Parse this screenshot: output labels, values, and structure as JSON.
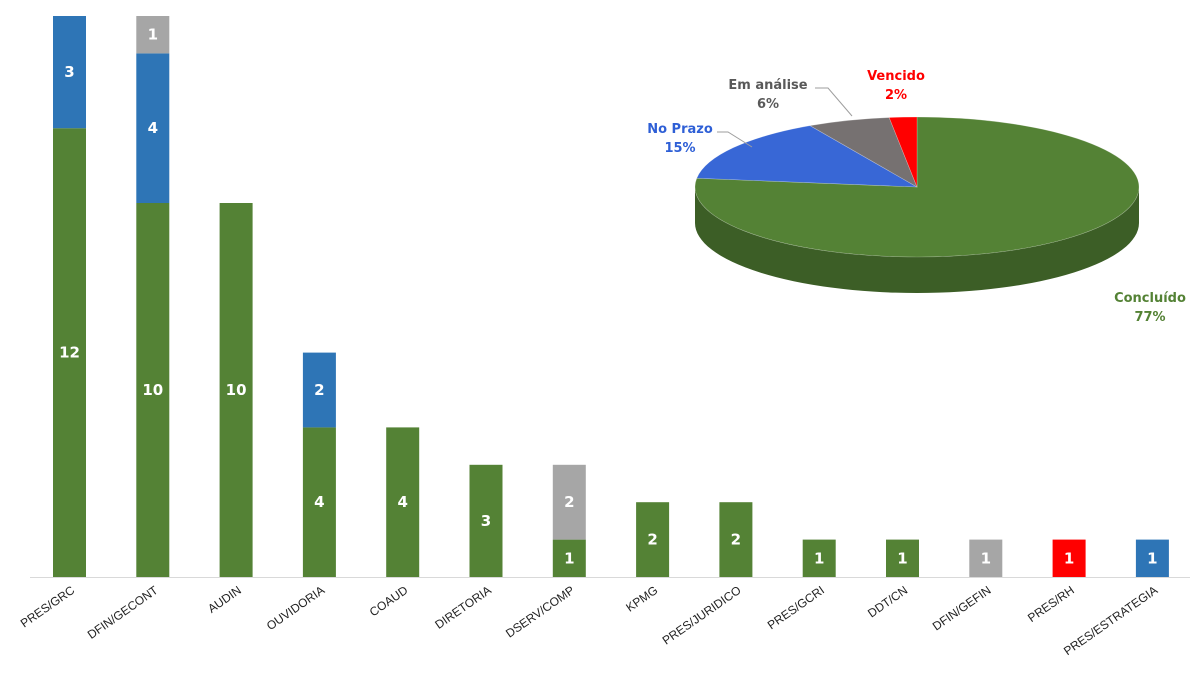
{
  "chart_data": [
    {
      "type": "bar",
      "stacked": true,
      "categories": [
        "PRES/GRC",
        "DFIN/GECONT",
        "AUDIN",
        "OUVIDORIA",
        "COAUD",
        "DIRETORIA",
        "DSERV/COMP",
        "KPMG",
        "PRES/JURIDICO",
        "PRES/GCRI",
        "DDT/CN",
        "DFIN/GEFIN",
        "PRES/RH",
        "PRES/ESTRATEGIA"
      ],
      "series": [
        {
          "color": "#548235",
          "values": [
            12,
            10,
            10,
            4,
            4,
            3,
            1,
            2,
            2,
            1,
            1,
            0,
            0,
            0
          ]
        },
        {
          "color": "#2E75B6",
          "values": [
            3,
            4,
            0,
            2,
            0,
            0,
            0,
            0,
            0,
            0,
            0,
            0,
            0,
            1
          ]
        },
        {
          "color": "#A6A6A6",
          "values": [
            0,
            1,
            0,
            0,
            0,
            0,
            2,
            0,
            0,
            0,
            0,
            1,
            0,
            0
          ]
        },
        {
          "color": "#FF0000",
          "values": [
            0,
            0,
            0,
            0,
            0,
            0,
            0,
            0,
            0,
            0,
            0,
            0,
            1,
            0
          ]
        }
      ],
      "ylim": [
        0,
        15
      ],
      "grid": false,
      "legend": "none"
    },
    {
      "type": "pie",
      "style": "3d",
      "slices": [
        {
          "label": "Concluído",
          "value": 77,
          "percent_text": "77%",
          "color": "#548235"
        },
        {
          "label": "No Prazo",
          "value": 15,
          "percent_text": "15%",
          "color": "#3867D6"
        },
        {
          "label": "Em análise",
          "value": 6,
          "percent_text": "6%",
          "color": "#767171"
        },
        {
          "label": "Vencido",
          "value": 2,
          "percent_text": "2%",
          "color": "#FF0000"
        }
      ],
      "label_colors": {
        "Concluído": "#548235",
        "No Prazo": "#2E5FD6",
        "Em análise": "#595959",
        "Vencido": "#FF0000"
      }
    }
  ]
}
